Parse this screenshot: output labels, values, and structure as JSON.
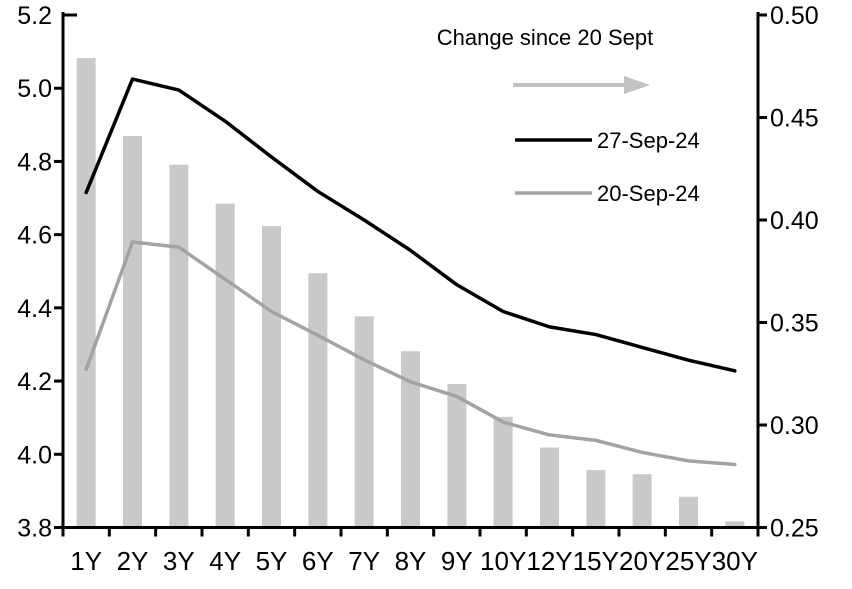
{
  "chart_data": {
    "type": "bar+line combo",
    "categories": [
      "1Y",
      "2Y",
      "3Y",
      "4Y",
      "5Y",
      "6Y",
      "7Y",
      "8Y",
      "9Y",
      "10Y",
      "12Y",
      "15Y",
      "20Y",
      "25Y",
      "30Y"
    ],
    "series": [
      {
        "name": "Change since 20 Sept",
        "type": "bar",
        "axis": "right",
        "color": "#c9c9c9",
        "values": [
          0.479,
          0.441,
          0.427,
          0.408,
          0.397,
          0.374,
          0.353,
          0.336,
          0.32,
          0.304,
          0.289,
          0.278,
          0.276,
          0.265,
          0.253
        ]
      },
      {
        "name": "27-Sep-24",
        "type": "line",
        "axis": "left",
        "color": "#000000",
        "values": [
          4.715,
          5.025,
          4.995,
          4.91,
          4.812,
          4.718,
          4.64,
          4.557,
          4.463,
          4.39,
          4.348,
          4.327,
          4.292,
          4.257,
          4.228
        ]
      },
      {
        "name": "20-Sep-24",
        "type": "line",
        "axis": "left",
        "color": "#a3a3a3",
        "values": [
          4.232,
          4.58,
          4.566,
          4.478,
          4.39,
          4.325,
          4.258,
          4.198,
          4.158,
          4.088,
          4.053,
          4.038,
          4.005,
          3.982,
          3.972
        ]
      }
    ],
    "left_axis": {
      "min": 3.8,
      "max": 5.2,
      "tick_labels": [
        "3.8",
        "4.0",
        "4.2",
        "4.4",
        "4.6",
        "4.8",
        "5.0",
        "5.2"
      ]
    },
    "right_axis": {
      "min": 0.25,
      "max": 0.5,
      "tick_labels": [
        "0.25",
        "0.30",
        "0.35",
        "0.40",
        "0.45",
        "0.50"
      ]
    },
    "legend": {
      "position": "top-center-right",
      "arrow_color": "#c2c2c2",
      "arrow_direction": "right"
    },
    "grid": "off",
    "title": "",
    "xlabel": "",
    "ylabel": ""
  },
  "colors": {
    "axis": "#000000",
    "bar": "#c9c9c9",
    "line_27sep": "#000000",
    "line_20sep": "#a3a3a3",
    "arrow": "#c2c2c2",
    "background": "#ffffff"
  }
}
